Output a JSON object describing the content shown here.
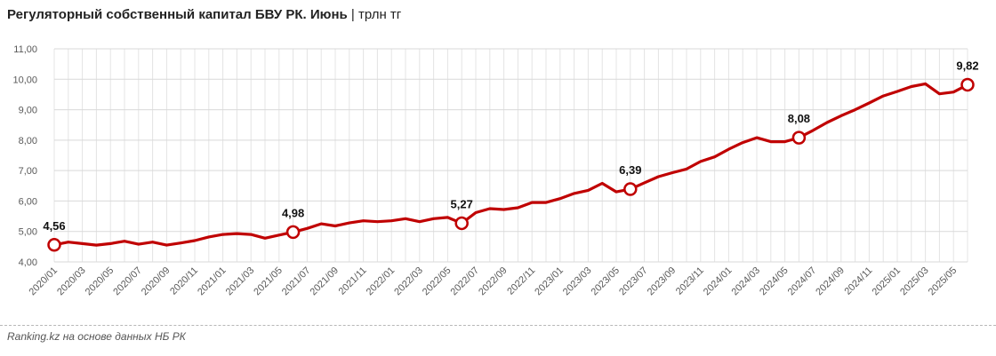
{
  "chart_data": {
    "type": "line",
    "title": "Регуляторный собственный капитал БВУ РК. Июнь",
    "subtitle": "трлн тг",
    "source": "Ranking.kz на основе данных НБ РК",
    "ylim": [
      4.0,
      11.0
    ],
    "yticks": [
      "4,00",
      "5,00",
      "6,00",
      "7,00",
      "8,00",
      "9,00",
      "10,00",
      "11,00"
    ],
    "ytick_values": [
      4,
      5,
      6,
      7,
      8,
      9,
      10,
      11
    ],
    "xticks": [
      "2020/01",
      "2020/03",
      "2020/05",
      "2020/07",
      "2020/09",
      "2020/11",
      "2021/01",
      "2021/03",
      "2021/05",
      "2021/07",
      "2021/09",
      "2021/11",
      "2022/01",
      "2022/03",
      "2022/05",
      "2022/07",
      "2022/09",
      "2022/11",
      "2023/01",
      "2023/03",
      "2023/05",
      "2023/07",
      "2023/09",
      "2023/11",
      "2024/01",
      "2024/03",
      "2024/05",
      "2024/07",
      "2024/09",
      "2024/11",
      "2025/01",
      "2025/03",
      "2025/05"
    ],
    "grid": true,
    "series": [
      {
        "color": "#c00000",
        "values": [
          4.56,
          4.65,
          4.6,
          4.55,
          4.6,
          4.68,
          4.58,
          4.65,
          4.55,
          4.62,
          4.7,
          4.82,
          4.9,
          4.93,
          4.9,
          4.78,
          4.88,
          4.98,
          5.1,
          5.25,
          5.18,
          5.28,
          5.35,
          5.32,
          5.35,
          5.42,
          5.32,
          5.42,
          5.46,
          5.27,
          5.62,
          5.75,
          5.72,
          5.78,
          5.95,
          5.95,
          6.08,
          6.25,
          6.35,
          6.58,
          6.3,
          6.39,
          6.6,
          6.8,
          6.93,
          7.05,
          7.3,
          7.45,
          7.7,
          7.92,
          8.08,
          7.95,
          7.95,
          8.08,
          8.32,
          8.58,
          8.8,
          9.0,
          9.22,
          9.45,
          9.6,
          9.76,
          9.85,
          9.52,
          9.58,
          9.82
        ]
      }
    ],
    "labeled_points": [
      {
        "index": 0,
        "label": "4,56"
      },
      {
        "index": 17,
        "label": "4,98"
      },
      {
        "index": 29,
        "label": "5,27"
      },
      {
        "index": 41,
        "label": "6,39"
      },
      {
        "index": 53,
        "label": "8,08"
      },
      {
        "index": 65,
        "label": "9,82"
      }
    ]
  }
}
